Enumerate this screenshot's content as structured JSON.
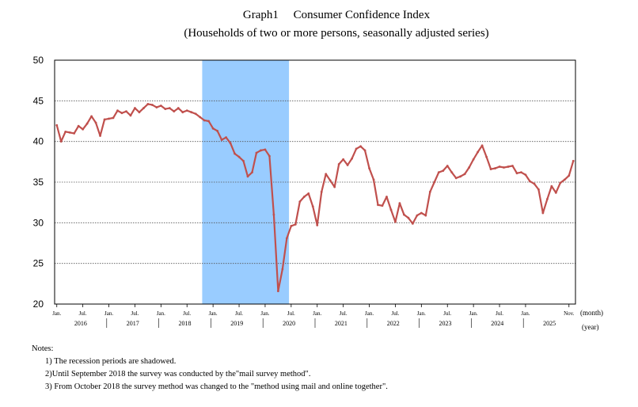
{
  "title": "Graph1　 Consumer Confidence Index",
  "subtitle": "(Households of two or more persons, seasonally adjusted series)",
  "notes": {
    "heading": "Notes:",
    "items": [
      "1) The recession periods are shadowed.",
      "2)Until September 2018 the survey was conducted by the\"mail survey method\".",
      "3) From October 2018 the survey method was changed to the \"method using mail and online together\"."
    ]
  },
  "colors": {
    "series": "#c0504d",
    "recession": "#99ccff",
    "grid": "#555555"
  },
  "chart_data": {
    "type": "line",
    "ylim": [
      20,
      50
    ],
    "yticks": [
      20,
      25,
      30,
      35,
      40,
      45,
      50
    ],
    "x_unit_label": "(month)",
    "year_unit_label": "(year)",
    "month_ticks": [
      {
        "index": 0,
        "label": "Jan."
      },
      {
        "index": 6,
        "label": "Jul."
      },
      {
        "index": 12,
        "label": "Jan."
      },
      {
        "index": 18,
        "label": "Jul."
      },
      {
        "index": 24,
        "label": "Jan."
      },
      {
        "index": 30,
        "label": "Jul."
      },
      {
        "index": 36,
        "label": "Jan."
      },
      {
        "index": 42,
        "label": "Jul."
      },
      {
        "index": 48,
        "label": "Jan."
      },
      {
        "index": 54,
        "label": "Jul."
      },
      {
        "index": 60,
        "label": "Jan."
      },
      {
        "index": 66,
        "label": "Jul."
      },
      {
        "index": 72,
        "label": "Jan."
      },
      {
        "index": 78,
        "label": "Jul."
      },
      {
        "index": 84,
        "label": "Jan."
      },
      {
        "index": 90,
        "label": "Jul."
      },
      {
        "index": 96,
        "label": "Jan."
      },
      {
        "index": 102,
        "label": "Jul."
      },
      {
        "index": 108,
        "label": "Jan."
      },
      {
        "index": 118,
        "label": "Nov."
      }
    ],
    "years": [
      "2016",
      "2017",
      "2018",
      "2019",
      "2020",
      "2021",
      "2022",
      "2023",
      "2024",
      "2025"
    ],
    "recession": {
      "start_index": 34,
      "end_index": 53
    },
    "series": [
      {
        "values": [
          42.0,
          40.0,
          41.2,
          41.1,
          41.0,
          41.9,
          41.5,
          42.2,
          43.1,
          42.3,
          40.7,
          42.7,
          42.8,
          42.9,
          43.8,
          43.5,
          43.7,
          43.2,
          44.1,
          43.6,
          44.1,
          44.6,
          44.5,
          44.2,
          44.4,
          44.0,
          44.1,
          43.7,
          44.1,
          43.6,
          43.8,
          43.6,
          43.4,
          43.0,
          42.6,
          42.5,
          41.6,
          41.3,
          40.2,
          40.5,
          39.8,
          38.5,
          38.1,
          37.6,
          35.7,
          36.2,
          38.6,
          38.9,
          39.0,
          38.2,
          31.0,
          21.6,
          24.3,
          28.1,
          29.6,
          29.8,
          32.6,
          33.2,
          33.6,
          32.0,
          29.7,
          33.8,
          36.0,
          35.2,
          34.4,
          37.2,
          37.8,
          37.1,
          37.9,
          39.1,
          39.4,
          38.9,
          36.7,
          35.3,
          32.2,
          32.1,
          33.2,
          31.6,
          30.1,
          32.4,
          31.0,
          30.6,
          29.9,
          30.9,
          31.2,
          30.9,
          33.8,
          35.0,
          36.2,
          36.4,
          37.0,
          36.2,
          35.5,
          35.7,
          36.0,
          36.8,
          37.8,
          38.7,
          39.5,
          38.1,
          36.6,
          36.7,
          36.9,
          36.8,
          36.9,
          37.0,
          36.1,
          36.2,
          35.9,
          35.1,
          34.8,
          34.1,
          31.2,
          32.9,
          34.5,
          33.7,
          34.9,
          35.3,
          35.8,
          37.6
        ]
      }
    ]
  }
}
